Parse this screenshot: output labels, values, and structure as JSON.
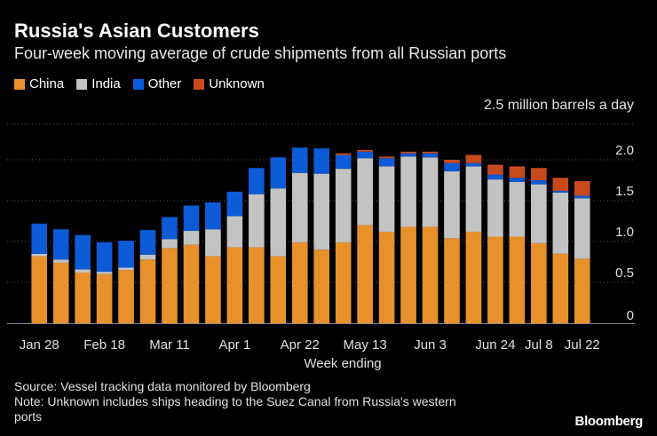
{
  "chart_data": {
    "type": "bar",
    "stacked": true,
    "title": "Russia's Asian Customers",
    "subtitle": "Four-week moving average of crude shipments from all Russian ports",
    "unit_label": "2.5 million barrels a day",
    "xlabel": "Week ending",
    "ylabel": "",
    "ylim": [
      0,
      2.5
    ],
    "yticks": [
      "0",
      "0.5",
      "1.0",
      "1.5",
      "2.0"
    ],
    "ytick_values": [
      0,
      0.5,
      1.0,
      1.5,
      2.0
    ],
    "grid": true,
    "legend_position": "top-left",
    "xtick_labels": [
      {
        "label": "Jan 28",
        "index": 0
      },
      {
        "label": "Feb 18",
        "index": 3
      },
      {
        "label": "Mar 11",
        "index": 6
      },
      {
        "label": "Apr 1",
        "index": 9
      },
      {
        "label": "Apr 22",
        "index": 12
      },
      {
        "label": "May 13",
        "index": 15
      },
      {
        "label": "Jun 3",
        "index": 18
      },
      {
        "label": "Jun 24",
        "index": 21
      },
      {
        "label": "Jul 8",
        "index": 23
      },
      {
        "label": "Jul 22",
        "index": 25
      }
    ],
    "categories": [
      "Jan 28",
      "Feb 4",
      "Feb 11",
      "Feb 18",
      "Feb 25",
      "Mar 4",
      "Mar 11",
      "Mar 18",
      "Mar 25",
      "Apr 1",
      "Apr 8",
      "Apr 15",
      "Apr 22",
      "Apr 29",
      "May 6",
      "May 13",
      "May 20",
      "May 27",
      "Jun 3",
      "Jun 10",
      "Jun 17",
      "Jun 24",
      "Jul 1",
      "Jul 8",
      "Jul 15",
      "Jul 22"
    ],
    "series": [
      {
        "name": "China",
        "color": "#e8902a",
        "values": [
          0.82,
          0.74,
          0.62,
          0.6,
          0.65,
          0.78,
          0.92,
          0.96,
          0.82,
          0.93,
          0.93,
          0.82,
          0.99,
          0.9,
          0.99,
          1.2,
          1.12,
          1.18,
          1.18,
          1.04,
          1.12,
          1.06,
          1.06,
          0.98,
          0.85,
          0.79
        ]
      },
      {
        "name": "India",
        "color": "#c3c3c3",
        "values": [
          0.03,
          0.04,
          0.04,
          0.03,
          0.03,
          0.06,
          0.11,
          0.17,
          0.33,
          0.38,
          0.65,
          0.83,
          0.85,
          0.93,
          0.9,
          0.82,
          0.8,
          0.86,
          0.85,
          0.82,
          0.8,
          0.7,
          0.67,
          0.72,
          0.75,
          0.74
        ]
      },
      {
        "name": "Other",
        "color": "#0d5bd6",
        "values": [
          0.37,
          0.37,
          0.42,
          0.36,
          0.33,
          0.3,
          0.27,
          0.31,
          0.33,
          0.3,
          0.32,
          0.38,
          0.31,
          0.31,
          0.17,
          0.08,
          0.1,
          0.04,
          0.05,
          0.1,
          0.04,
          0.06,
          0.05,
          0.05,
          0.02,
          0.03
        ]
      },
      {
        "name": "Unknown",
        "color": "#c84a1c",
        "values": [
          0,
          0,
          0,
          0,
          0,
          0,
          0,
          0,
          0,
          0,
          0,
          0,
          0,
          0,
          0.02,
          0.02,
          0.02,
          0.02,
          0.02,
          0.04,
          0.1,
          0.12,
          0.14,
          0.15,
          0.16,
          0.18
        ]
      }
    ]
  },
  "footer": {
    "source": "Source: Vessel tracking data monitored by Bloomberg",
    "note_line1": "Note: Unknown includes ships heading to the Suez Canal from Russia's western",
    "note_line2": "ports",
    "brand": "Bloomberg"
  }
}
